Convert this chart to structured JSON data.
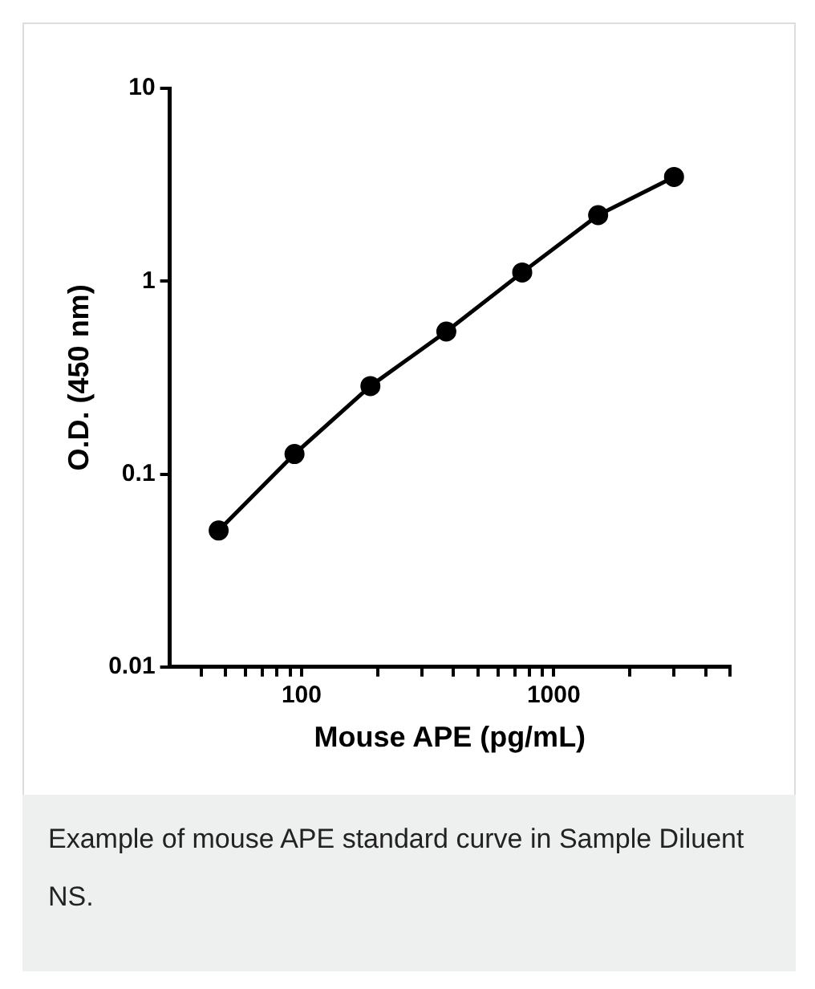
{
  "chart_data": {
    "type": "line",
    "xlabel": "Mouse APE (pg/mL)",
    "ylabel": "O.D. (450 nm)",
    "log": "xy",
    "marker": "circle",
    "line_style": "solid",
    "x": [
      46.9,
      93.75,
      187.5,
      375,
      750,
      1500,
      3000
    ],
    "series": [
      {
        "color": "#000000",
        "values": [
          0.051,
          0.127,
          0.286,
          0.548,
          1.11,
          2.2,
          3.47
        ]
      }
    ],
    "xlim": [
      30,
      5000
    ],
    "ylim": [
      0.01,
      10
    ],
    "xticks": [
      {
        "value": 40,
        "label": null
      },
      {
        "value": 50,
        "label": null
      },
      {
        "value": 60,
        "label": null
      },
      {
        "value": 70,
        "label": null
      },
      {
        "value": 80,
        "label": null
      },
      {
        "value": 90,
        "label": null
      },
      100,
      {
        "value": 200,
        "label": null
      },
      {
        "value": 300,
        "label": null
      },
      {
        "value": 400,
        "label": null
      },
      {
        "value": 500,
        "label": null
      },
      {
        "value": 600,
        "label": null
      },
      {
        "value": 700,
        "label": null
      },
      {
        "value": 800,
        "label": null
      },
      {
        "value": 900,
        "label": null
      },
      1000,
      {
        "value": 2000,
        "label": null
      },
      {
        "value": 3000,
        "label": null
      },
      {
        "value": 4000,
        "label": null
      },
      {
        "value": 5000,
        "label": null
      }
    ],
    "yticks": [
      0.01,
      0.1,
      1,
      10
    ],
    "annotations": [
      "Example of mouse APE standard curve in Sample Diluent NS."
    ]
  }
}
